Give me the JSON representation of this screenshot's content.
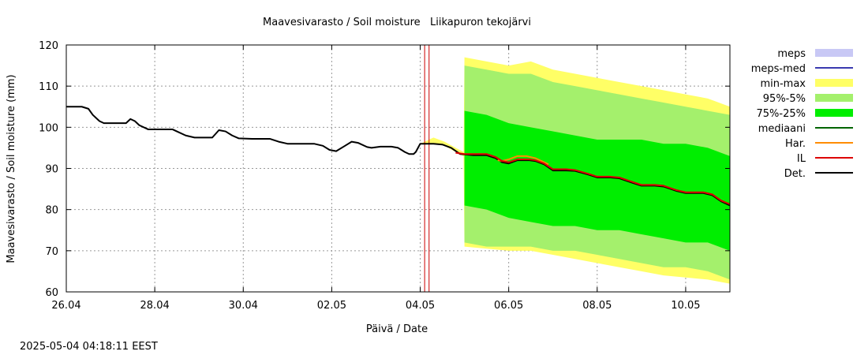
{
  "chart_data": {
    "type": "line",
    "title": "Maavesivarasto / Soil moisture   Liikapuron tekojärvi",
    "xlabel": "Päivä / Date",
    "ylabel": "Maavesivarasto / Soil moisture (mm)",
    "timestamp": "2025-05-04 04:18:11 EEST",
    "xlim": [
      0,
      15
    ],
    "ylim": [
      60,
      120
    ],
    "grid": true,
    "legend_position": "right",
    "x_ticks": [
      {
        "x": 0,
        "label": "26.04"
      },
      {
        "x": 2,
        "label": "28.04"
      },
      {
        "x": 4,
        "label": "30.04"
      },
      {
        "x": 6,
        "label": "02.05"
      },
      {
        "x": 8,
        "label": "04.05"
      },
      {
        "x": 10,
        "label": "06.05"
      },
      {
        "x": 12,
        "label": "08.05"
      },
      {
        "x": 14,
        "label": "10.05"
      }
    ],
    "y_ticks": [
      60,
      70,
      80,
      90,
      100,
      110,
      120
    ],
    "vertical_lines": [
      {
        "x": 8.1,
        "color": "#cc0000"
      },
      {
        "x": 8.2,
        "color": "#cc0000"
      }
    ],
    "legend": [
      {
        "label": "meps",
        "kind": "band",
        "color": "#c8c8f5"
      },
      {
        "label": "meps-med",
        "kind": "line",
        "color": "#3a3ab0"
      },
      {
        "label": "min-max",
        "kind": "band",
        "color": "#ffff66"
      },
      {
        "label": "95%-5%",
        "kind": "band",
        "color": "#a4f06c"
      },
      {
        "label": "75%-25%",
        "kind": "band",
        "color": "#00ee00"
      },
      {
        "label": "mediaani",
        "kind": "line",
        "color": "#006400"
      },
      {
        "label": "Har.",
        "kind": "line",
        "color": "#ff8c00"
      },
      {
        "label": "IL",
        "kind": "line",
        "color": "#dd0000"
      },
      {
        "label": "Det.",
        "kind": "line",
        "color": "#000000"
      }
    ],
    "bands": [
      {
        "name": "min-max",
        "color": "#ffff66",
        "x": [
          8.0,
          8.3,
          8.55,
          8.8,
          8.98,
          9.0,
          9.5,
          10.0,
          10.5,
          11.0,
          11.5,
          12.0,
          12.5,
          13.0,
          13.5,
          14.0,
          14.5,
          15.0
        ],
        "upper": [
          96,
          97.5,
          96.5,
          95,
          94,
          117,
          116,
          115,
          116,
          114,
          113,
          112,
          111,
          110,
          109,
          108,
          107,
          105
        ],
        "lower": [
          96,
          96,
          95.5,
          94,
          93,
          71,
          70.5,
          70,
          70,
          69,
          68,
          67,
          66,
          65,
          64,
          63.5,
          63,
          62
        ]
      },
      {
        "name": "95%-5%",
        "color": "#a4f06c",
        "x": [
          9.0,
          9.5,
          10.0,
          10.5,
          11.0,
          11.5,
          12.0,
          12.5,
          13.0,
          13.5,
          14.0,
          14.5,
          15.0
        ],
        "upper": [
          115,
          114,
          113,
          113,
          111,
          110,
          109,
          108,
          107,
          106,
          105,
          104,
          103
        ],
        "lower": [
          72,
          71,
          71,
          71,
          70,
          70,
          69,
          68,
          67,
          66,
          66,
          65,
          63
        ]
      },
      {
        "name": "75%-25%",
        "color": "#00ee00",
        "x": [
          9.0,
          9.5,
          10.0,
          10.5,
          11.0,
          11.5,
          12.0,
          12.5,
          13.0,
          13.5,
          14.0,
          14.5,
          15.0
        ],
        "upper": [
          104,
          103,
          101,
          100,
          99,
          98,
          97,
          97,
          97,
          96,
          96,
          95,
          93
        ],
        "lower": [
          81,
          80,
          78,
          77,
          76,
          76,
          75,
          75,
          74,
          73,
          72,
          72,
          70
        ]
      }
    ],
    "series": [
      {
        "name": "Det.",
        "color": "#000000",
        "width": 2,
        "x": [
          0.0,
          0.35,
          0.5,
          0.6,
          0.75,
          0.85,
          1.0,
          1.35,
          1.45,
          1.55,
          1.65,
          1.85,
          2.0,
          2.4,
          2.5,
          2.7,
          2.9,
          3.15,
          3.3,
          3.45,
          3.6,
          3.75,
          3.9,
          4.2,
          4.6,
          4.8,
          5.0,
          5.3,
          5.6,
          5.8,
          5.95,
          6.1,
          6.3,
          6.45,
          6.6,
          6.8,
          6.9,
          7.1,
          7.35,
          7.5,
          7.65,
          7.75,
          7.85,
          7.9,
          8.0,
          8.3,
          8.5,
          8.7,
          8.9,
          9.2,
          9.5,
          9.7,
          9.85,
          10.0,
          10.2,
          10.45,
          10.6,
          10.8,
          11.0,
          11.3,
          11.5,
          11.8,
          12.0,
          12.3,
          12.5,
          12.8,
          13.0,
          13.3,
          13.5,
          13.8,
          14.0,
          14.2,
          14.4,
          14.6,
          14.8,
          15.0
        ],
        "y": [
          105,
          105,
          104.5,
          103,
          101.5,
          101,
          101,
          101,
          102,
          101.5,
          100.5,
          99.5,
          99.5,
          99.5,
          99,
          98,
          97.5,
          97.5,
          97.5,
          99.3,
          99,
          98,
          97.3,
          97.2,
          97.2,
          96.5,
          96,
          96,
          96,
          95.5,
          94.5,
          94.2,
          95.5,
          96.5,
          96.2,
          95.2,
          95,
          95.3,
          95.3,
          95,
          94,
          93.5,
          93.5,
          94,
          96,
          96,
          95.8,
          95,
          93.5,
          93.2,
          93.2,
          92.5,
          91.5,
          91.2,
          92,
          92,
          91.8,
          91,
          89.5,
          89.5,
          89.4,
          88.5,
          87.8,
          87.8,
          87.6,
          86.5,
          85.8,
          85.8,
          85.6,
          84.5,
          84,
          84,
          84,
          83.5,
          82,
          81
        ]
      },
      {
        "name": "Har.",
        "color": "#ff8c00",
        "width": 2,
        "x": [
          9.75,
          9.85,
          10.0,
          10.2,
          10.4,
          10.6,
          10.8,
          10.9
        ],
        "y": [
          92,
          91.8,
          92.2,
          93,
          93,
          92.5,
          91.5,
          91
        ]
      },
      {
        "name": "IL",
        "color": "#dd0000",
        "width": 2,
        "x": [
          8.8,
          9.0,
          9.5,
          9.7,
          9.85,
          10.0,
          10.2,
          10.45,
          10.6,
          10.8,
          11.0,
          11.3,
          11.5,
          11.8,
          12.0,
          12.3,
          12.5,
          12.8,
          13.0,
          13.3,
          13.5,
          13.8,
          14.0,
          14.2,
          14.4,
          14.6,
          14.8,
          15.0
        ],
        "y": [
          93.8,
          93.5,
          93.5,
          92.8,
          91.8,
          91.5,
          92.2,
          92.2,
          92,
          91.2,
          89.8,
          89.8,
          89.6,
          88.7,
          88,
          88,
          87.8,
          86.7,
          86,
          86,
          85.8,
          84.7,
          84.2,
          84.2,
          84.2,
          83.7,
          82.2,
          81.3
        ]
      }
    ]
  }
}
